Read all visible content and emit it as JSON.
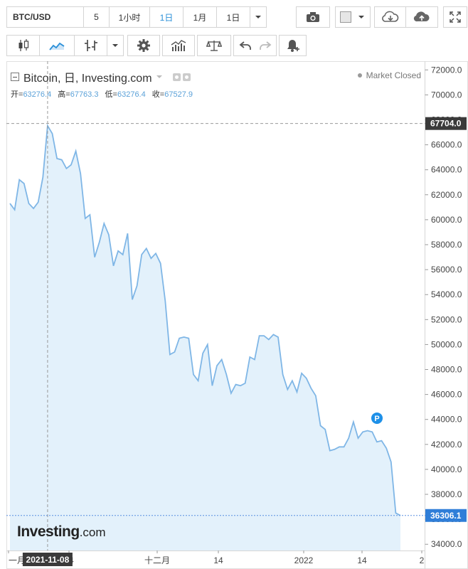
{
  "toolbar": {
    "symbol": "BTC/USD",
    "intervals": [
      "5",
      "1小时",
      "1日",
      "1月",
      "1日"
    ],
    "active_interval": "1日"
  },
  "legend": {
    "title": "Bitcoin, 日, Investing.com",
    "ohlc": [
      {
        "label": "开=",
        "value": "63276.4"
      },
      {
        "label": "高=",
        "value": "67763.3"
      },
      {
        "label": "低=",
        "value": "63276.4"
      },
      {
        "label": "收=",
        "value": "67527.9"
      }
    ],
    "market_status": "Market Closed"
  },
  "logo": {
    "bold": "Investing",
    "suffix": ".com"
  },
  "colors": {
    "line": "#7fb6e6",
    "area": "#e3f1fb",
    "accent": "#2a8fd8",
    "price_tag": "#2f7ed8"
  },
  "chart_data": {
    "type": "area",
    "ylim": [
      33500,
      72700
    ],
    "y_ticks": [
      34000,
      36000,
      38000,
      40000,
      42000,
      44000,
      46000,
      48000,
      50000,
      52000,
      54000,
      56000,
      58000,
      60000,
      62000,
      64000,
      66000,
      68000,
      70000,
      72000
    ],
    "y_tick_labels": [
      "34000.0",
      "36000.0",
      "38000.0",
      "40000.0",
      "42000.0",
      "44000.0",
      "46000.0",
      "48000.0",
      "50000.0",
      "52000.0",
      "54000.0",
      "56000.0",
      "58000.0",
      "60000.0",
      "62000.0",
      "64000.0",
      "66000.0",
      "68000.0",
      "70000.0",
      "72000.0"
    ],
    "x_labels": [
      "一月",
      "14",
      "十二月",
      "14",
      "2022",
      "14",
      "2"
    ],
    "crosshair_x_label": "2021-11-08",
    "crosshair_y_label": "67704.0",
    "last_price_label": "36306.1",
    "last_price": 36306.1,
    "crosshair_price": 67704.0,
    "marker": "P",
    "values": [
      61300,
      60800,
      63200,
      62900,
      61300,
      60900,
      61400,
      63400,
      67528,
      66900,
      64900,
      64800,
      64100,
      64400,
      65500,
      63700,
      60100,
      60400,
      57000,
      58200,
      59700,
      58800,
      56300,
      57500,
      57200,
      58900,
      53600,
      54700,
      57200,
      57700,
      56900,
      57300,
      56500,
      53500,
      49200,
      49400,
      50500,
      50600,
      50500,
      47600,
      47100,
      49300,
      50000,
      46700,
      48300,
      48800,
      47600,
      46100,
      46800,
      46700,
      46900,
      49000,
      48800,
      50700,
      50700,
      50400,
      50800,
      50600,
      47600,
      46400,
      47100,
      46200,
      47700,
      47300,
      46500,
      45900,
      43500,
      43200,
      41500,
      41600,
      41800,
      41800,
      42500,
      43800,
      42500,
      43000,
      43100,
      43000,
      42200,
      42300,
      41700,
      40600,
      36500,
      36306
    ]
  }
}
